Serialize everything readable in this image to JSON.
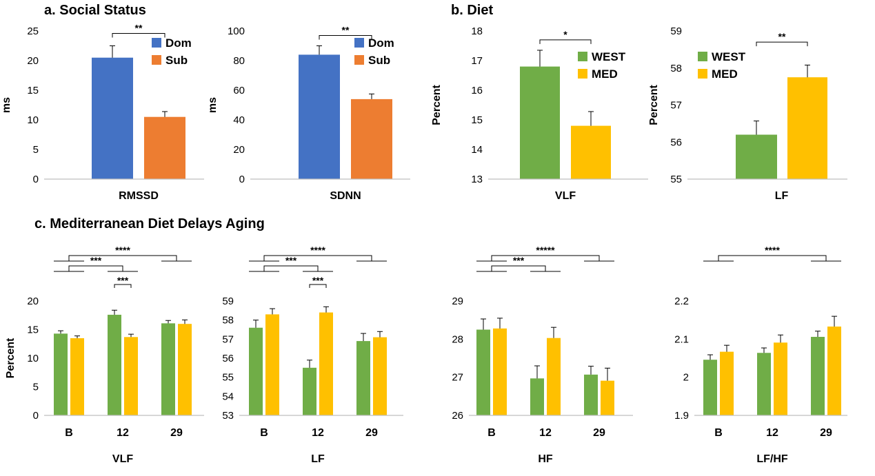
{
  "sections": [
    {
      "text": "a. Social Status"
    },
    {
      "text": "b. Diet"
    },
    {
      "text": "c. Mediterranean Diet Delays Aging"
    }
  ],
  "colors": {
    "dom": "#4472c4",
    "sub": "#ed7d31",
    "west": "#70ad47",
    "med": "#ffc000",
    "axis": "#000000"
  },
  "chart_data": [
    {
      "type": "bar",
      "section": "a. Social Status",
      "categories": [
        "RMSSD"
      ],
      "xlabel": "RMSSD",
      "ylabel": "ms",
      "ylim": [
        0,
        25
      ],
      "yticks": [
        0,
        5,
        10,
        15,
        20,
        25
      ],
      "legend_placement": "top-right",
      "series": [
        {
          "name": "Dom",
          "color": "#4472c4",
          "values": [
            20.5
          ],
          "errors": [
            2.0
          ]
        },
        {
          "name": "Sub",
          "color": "#ed7d31",
          "values": [
            10.5
          ],
          "errors": [
            0.9
          ]
        }
      ],
      "significance": [
        {
          "label": "**",
          "from": 0,
          "to": 1,
          "y": 24.6
        }
      ]
    },
    {
      "type": "bar",
      "section": "a. Social Status",
      "categories": [
        "SDNN"
      ],
      "xlabel": "SDNN",
      "ylabel": "ms",
      "ylim": [
        0,
        100
      ],
      "yticks": [
        0,
        20,
        40,
        60,
        80,
        100
      ],
      "legend_placement": "top-right",
      "series": [
        {
          "name": "Dom",
          "color": "#4472c4",
          "values": [
            84
          ],
          "errors": [
            6
          ]
        },
        {
          "name": "Sub",
          "color": "#ed7d31",
          "values": [
            54
          ],
          "errors": [
            3.5
          ]
        }
      ],
      "significance": [
        {
          "label": "**",
          "from": 0,
          "to": 1,
          "y": 97
        }
      ]
    },
    {
      "type": "bar",
      "section": "b. Diet",
      "categories": [
        "VLF"
      ],
      "xlabel": "VLF",
      "ylabel": "Percent",
      "ylim": [
        13,
        18
      ],
      "yticks": [
        13,
        14,
        15,
        16,
        17,
        18
      ],
      "legend_placement": "top-right",
      "series": [
        {
          "name": "WEST",
          "color": "#70ad47",
          "values": [
            16.8
          ],
          "errors": [
            0.55
          ]
        },
        {
          "name": "MED",
          "color": "#ffc000",
          "values": [
            14.8
          ],
          "errors": [
            0.48
          ]
        }
      ],
      "significance": [
        {
          "label": "*",
          "from": 0,
          "to": 1,
          "y": 17.7
        }
      ]
    },
    {
      "type": "bar",
      "section": "b. Diet",
      "categories": [
        "LF"
      ],
      "xlabel": "LF",
      "ylabel": "Percent",
      "ylim": [
        55,
        59
      ],
      "yticks": [
        55,
        56,
        57,
        58,
        59
      ],
      "legend_placement": "top-left",
      "series": [
        {
          "name": "WEST",
          "color": "#70ad47",
          "values": [
            56.2
          ],
          "errors": [
            0.37
          ]
        },
        {
          "name": "MED",
          "color": "#ffc000",
          "values": [
            57.75
          ],
          "errors": [
            0.33
          ]
        }
      ],
      "significance": [
        {
          "label": "**",
          "from": 0,
          "to": 1,
          "y": 58.7
        }
      ]
    },
    {
      "type": "bar",
      "section": "c. Mediterranean Diet Delays Aging",
      "categories": [
        "B",
        "12",
        "29"
      ],
      "xlabel": "VLF",
      "ylabel": "Percent",
      "ylim": [
        0,
        20
      ],
      "yticks": [
        0,
        5,
        10,
        15,
        20
      ],
      "series": [
        {
          "name": "WEST",
          "color": "#70ad47",
          "values": [
            14.3,
            17.6,
            16.1
          ],
          "errors": [
            0.5,
            0.8,
            0.5
          ]
        },
        {
          "name": "MED",
          "color": "#ffc000",
          "values": [
            13.5,
            13.7,
            16.0
          ],
          "errors": [
            0.4,
            0.5,
            0.7
          ]
        }
      ],
      "significance": [
        {
          "label": "****",
          "from": 0,
          "to": 2,
          "level": 3
        },
        {
          "label": "***",
          "from": 0,
          "to": 1,
          "level": 2
        },
        {
          "label": "***",
          "pair_at": 1,
          "level": 0
        }
      ]
    },
    {
      "type": "bar",
      "section": "c. Mediterranean Diet Delays Aging",
      "categories": [
        "B",
        "12",
        "29"
      ],
      "xlabel": "LF",
      "ylabel": "",
      "ylim": [
        53,
        59
      ],
      "yticks": [
        53,
        54,
        55,
        56,
        57,
        58,
        59
      ],
      "series": [
        {
          "name": "WEST",
          "color": "#70ad47",
          "values": [
            57.6,
            55.5,
            56.9
          ],
          "errors": [
            0.4,
            0.4,
            0.4
          ]
        },
        {
          "name": "MED",
          "color": "#ffc000",
          "values": [
            58.3,
            58.4,
            57.1
          ],
          "errors": [
            0.3,
            0.3,
            0.3
          ]
        }
      ],
      "significance": [
        {
          "label": "****",
          "from": 0,
          "to": 2,
          "level": 3
        },
        {
          "label": "***",
          "from": 0,
          "to": 1,
          "level": 2
        },
        {
          "label": "***",
          "pair_at": 1,
          "level": 0
        }
      ]
    },
    {
      "type": "bar",
      "section": "c. Mediterranean Diet Delays Aging",
      "categories": [
        "B",
        "12",
        "29"
      ],
      "xlabel": "HF",
      "ylabel": "",
      "ylim": [
        26,
        29
      ],
      "yticks": [
        26,
        27,
        28,
        29
      ],
      "series": [
        {
          "name": "WEST",
          "color": "#70ad47",
          "values": [
            28.25,
            26.97,
            27.07
          ],
          "errors": [
            0.28,
            0.33,
            0.22
          ]
        },
        {
          "name": "MED",
          "color": "#ffc000",
          "values": [
            28.28,
            28.03,
            26.91
          ],
          "errors": [
            0.27,
            0.28,
            0.33
          ]
        }
      ],
      "significance": [
        {
          "label": "*****",
          "from": 0,
          "to": 2,
          "level": 3
        },
        {
          "label": "***",
          "from": 0,
          "to": 1,
          "level": 2
        }
      ]
    },
    {
      "type": "bar",
      "section": "c. Mediterranean Diet Delays Aging",
      "categories": [
        "B",
        "12",
        "29"
      ],
      "xlabel": "LF/HF",
      "ylabel": "",
      "ylim": [
        1.9,
        2.2
      ],
      "yticks": [
        1.9,
        2,
        2.1,
        2.2
      ],
      "series": [
        {
          "name": "WEST",
          "color": "#70ad47",
          "values": [
            2.046,
            2.064,
            2.106
          ],
          "errors": [
            0.013,
            0.013,
            0.015
          ]
        },
        {
          "name": "MED",
          "color": "#ffc000",
          "values": [
            2.067,
            2.091,
            2.133
          ],
          "errors": [
            0.017,
            0.02,
            0.027
          ]
        }
      ],
      "significance": [
        {
          "label": "****",
          "from": 0,
          "to": 2,
          "level": 3
        }
      ]
    }
  ]
}
